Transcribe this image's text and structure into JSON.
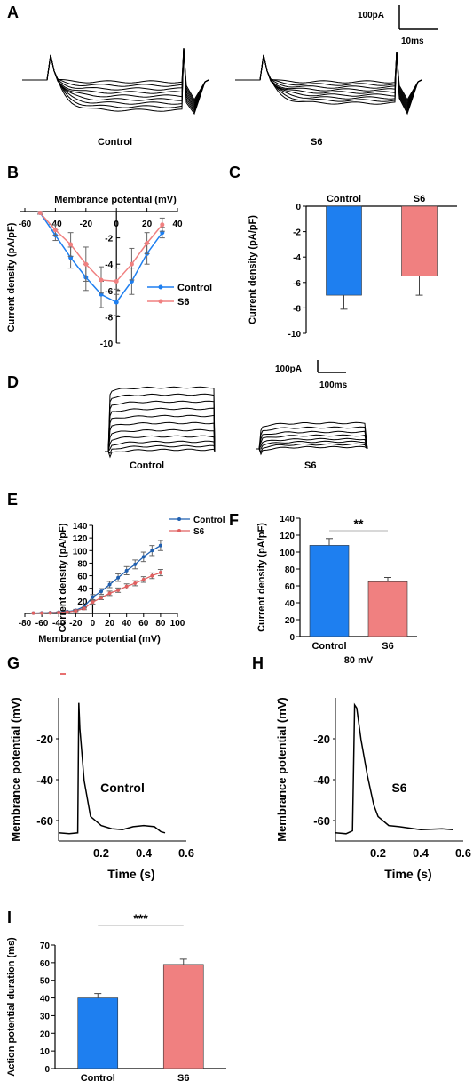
{
  "colors": {
    "control": "#1e7ff0",
    "s6": "#f08080",
    "control_dark": "#1f5fb0",
    "s6_dark": "#e06060"
  },
  "panels": {
    "A": {
      "label": "A",
      "scale_current": "100pA",
      "scale_time": "10ms",
      "cond1": "Control",
      "cond2": "S6"
    },
    "B": {
      "label": "B"
    },
    "C": {
      "label": "C"
    },
    "D": {
      "label": "D",
      "scale_current": "100pA",
      "scale_time": "100ms",
      "cond1": "Control",
      "cond2": "S6"
    },
    "E": {
      "label": "E"
    },
    "F": {
      "label": "F"
    },
    "G": {
      "label": "G"
    },
    "H": {
      "label": "H"
    },
    "I": {
      "label": "I"
    }
  },
  "chart_data": [
    {
      "id": "B",
      "type": "line",
      "xlabel": "Membrance potential (mV)",
      "ylabel": "Current density (pA/pF)",
      "xlim": [
        -60,
        40
      ],
      "ylim": [
        -10,
        0
      ],
      "xticks": [
        -60,
        -40,
        -20,
        0,
        20,
        40
      ],
      "yticks": [
        0,
        -2,
        -4,
        -6,
        -8,
        -10
      ],
      "legend_position": "right",
      "series": [
        {
          "name": "Control",
          "color": "#1e7ff0",
          "x": [
            -50,
            -40,
            -30,
            -20,
            -10,
            0,
            10,
            20,
            30
          ],
          "y": [
            -0.1,
            -1.8,
            -3.5,
            -5.0,
            -6.3,
            -6.9,
            -5.3,
            -3.2,
            -1.6
          ],
          "err": [
            0.1,
            0.4,
            0.8,
            1.0,
            1.0,
            1.0,
            1.0,
            0.8,
            0.4
          ]
        },
        {
          "name": "S6",
          "color": "#f08080",
          "x": [
            -50,
            -40,
            -30,
            -20,
            -10,
            0,
            10,
            20,
            30
          ],
          "y": [
            -0.1,
            -1.4,
            -2.5,
            -4.0,
            -5.2,
            -5.3,
            -4.0,
            -2.4,
            -1.0
          ],
          "err": [
            0.1,
            0.4,
            0.9,
            1.3,
            1.0,
            1.0,
            1.2,
            0.8,
            0.5
          ]
        }
      ]
    },
    {
      "id": "C",
      "type": "bar",
      "ylabel": "Current density (pA/pF)",
      "categories": [
        "Control",
        "S6"
      ],
      "values": [
        -7.0,
        -5.5
      ],
      "errors": [
        1.1,
        1.5
      ],
      "colors": [
        "#1e7ff0",
        "#f08080"
      ],
      "ylim": [
        -10,
        0
      ],
      "yticks": [
        0,
        -2,
        -4,
        -6,
        -8,
        -10
      ]
    },
    {
      "id": "E",
      "type": "line",
      "xlabel": "Membrance potential (mV)",
      "ylabel": "Current density (pA/pF)",
      "xlim": [
        -80,
        100
      ],
      "ylim": [
        0,
        140
      ],
      "xticks": [
        -80,
        -60,
        -40,
        -20,
        0,
        20,
        40,
        60,
        80,
        100
      ],
      "yticks": [
        0,
        20,
        40,
        60,
        80,
        100,
        120,
        140
      ],
      "legend_position": "top-right",
      "series": [
        {
          "name": "Control",
          "color": "#1f5fb0",
          "x": [
            -70,
            -60,
            -50,
            -40,
            -30,
            -20,
            -10,
            0,
            10,
            20,
            30,
            40,
            50,
            60,
            70,
            80
          ],
          "y": [
            0.5,
            0.8,
            1.2,
            2,
            3,
            5,
            11,
            26,
            35,
            46,
            57,
            68,
            78,
            90,
            100,
            108
          ],
          "err": [
            0.2,
            0.3,
            0.4,
            0.5,
            0.8,
            1.5,
            2.5,
            4,
            4.5,
            5,
            6,
            6.5,
            7,
            7.5,
            8,
            8
          ]
        },
        {
          "name": "S6",
          "color": "#e06060",
          "x": [
            -70,
            -60,
            -50,
            -40,
            -30,
            -20,
            -10,
            0,
            10,
            20,
            30,
            40,
            50,
            60,
            70,
            80
          ],
          "y": [
            0.5,
            0.6,
            0.9,
            1.5,
            2.2,
            4,
            8,
            18,
            25,
            32,
            37,
            43,
            48,
            54,
            60,
            65
          ],
          "err": [
            0.2,
            0.3,
            0.4,
            0.5,
            0.8,
            1.2,
            2,
            3,
            3,
            3.5,
            3.5,
            4,
            4,
            4.5,
            4.5,
            5
          ]
        }
      ]
    },
    {
      "id": "F",
      "type": "bar",
      "ylabel": "Current density (pA/pF)",
      "xlabel": "80 mV",
      "categories": [
        "Control",
        "S6"
      ],
      "values": [
        108,
        65
      ],
      "errors": [
        8,
        5
      ],
      "colors": [
        "#1e7ff0",
        "#f08080"
      ],
      "ylim": [
        0,
        140
      ],
      "yticks": [
        0,
        20,
        40,
        60,
        80,
        100,
        120,
        140
      ],
      "significance": "**"
    },
    {
      "id": "G",
      "type": "line",
      "xlabel": "Time (s)",
      "ylabel": "Membrance potential (mV)",
      "xticks": [
        0.2,
        0.4,
        0.6
      ],
      "yticks": [
        -20,
        -40,
        -60
      ],
      "xlim": [
        0,
        0.6
      ],
      "ylim": [
        -70,
        0
      ],
      "annotation": "Control",
      "series": [
        {
          "color": "#000000",
          "x": [
            0.0,
            0.05,
            0.09,
            0.095,
            0.1,
            0.12,
            0.15,
            0.2,
            0.25,
            0.3,
            0.35,
            0.4,
            0.45,
            0.48,
            0.5
          ],
          "y": [
            -66,
            -66,
            -66,
            -2,
            -15,
            -40,
            -58,
            -62,
            -64,
            -64,
            -63,
            -62,
            -63,
            -65,
            -66
          ]
        }
      ]
    },
    {
      "id": "H",
      "type": "line",
      "xlabel": "Time (s)",
      "ylabel": "Membrance potential (mV)",
      "xticks": [
        0.2,
        0.4,
        0.6
      ],
      "yticks": [
        -20,
        -40,
        -60
      ],
      "xlim": [
        0,
        0.6
      ],
      "ylim": [
        -70,
        0
      ],
      "annotation": "S6",
      "series": [
        {
          "color": "#000000",
          "x": [
            0.0,
            0.05,
            0.08,
            0.09,
            0.1,
            0.12,
            0.15,
            0.18,
            0.2,
            0.25,
            0.3,
            0.4,
            0.5,
            0.55
          ],
          "y": [
            -66,
            -66,
            -65,
            -3,
            -5,
            -20,
            -38,
            -52,
            -58,
            -62,
            -63,
            -64,
            -64,
            -64
          ]
        }
      ]
    },
    {
      "id": "I",
      "type": "bar",
      "ylabel": "Action potential duration (ms)",
      "categories": [
        "Control",
        "S6"
      ],
      "values": [
        40,
        59
      ],
      "errors": [
        2.5,
        3
      ],
      "colors": [
        "#1e7ff0",
        "#f08080"
      ],
      "ylim": [
        0,
        70
      ],
      "yticks": [
        0,
        10,
        20,
        30,
        40,
        50,
        60,
        70
      ],
      "significance": "***"
    }
  ]
}
